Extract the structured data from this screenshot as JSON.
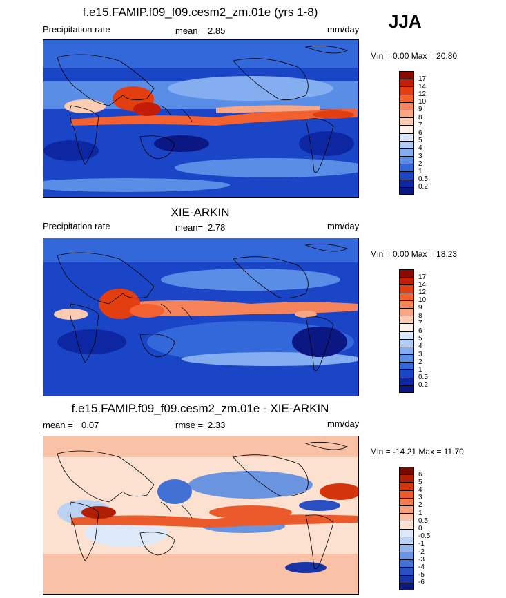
{
  "season": "JJA",
  "panels": [
    {
      "title": "f.e15.FAMIP.f09_f09.cesm2_zm.01e (yrs 1-8)",
      "left_label": "Precipitation rate",
      "stat_label": "mean=",
      "stat_value": "2.85",
      "stat2_label": "",
      "stat2_value": "",
      "units": "mm/day",
      "minmax": "Min =   0.00 Max =  20.80",
      "colorbar_ticks": [
        "17",
        "14",
        "12",
        "10",
        "9",
        "8",
        "7",
        "6",
        "5",
        "4",
        "3",
        "2",
        "1",
        "0.5",
        "0.2"
      ],
      "colors": [
        "#8b0a00",
        "#c51d05",
        "#e33e10",
        "#f2612f",
        "#f5845a",
        "#f8a683",
        "#fbccb2",
        "#fdf0e6",
        "#d7e6fb",
        "#b1cdf5",
        "#85aef0",
        "#5a8ee6",
        "#3368db",
        "#1b45c7",
        "#0d27a3",
        "#0b1783"
      ]
    },
    {
      "title": "XIE-ARKIN",
      "left_label": "Precipitation rate",
      "stat_label": "mean=",
      "stat_value": "2.78",
      "stat2_label": "",
      "stat2_value": "",
      "units": "mm/day",
      "minmax": "Min =   0.00 Max =  18.23",
      "colorbar_ticks": [
        "17",
        "14",
        "12",
        "10",
        "9",
        "8",
        "7",
        "6",
        "5",
        "4",
        "3",
        "2",
        "1",
        "0.5",
        "0.2"
      ],
      "colors": [
        "#8b0a00",
        "#c51d05",
        "#e33e10",
        "#f2612f",
        "#f5845a",
        "#f8a683",
        "#fbccb2",
        "#fdf0e6",
        "#d7e6fb",
        "#b1cdf5",
        "#85aef0",
        "#5a8ee6",
        "#3368db",
        "#1b45c7",
        "#0d27a3",
        "#0b1783"
      ]
    },
    {
      "title": "f.e15.FAMIP.f09_f09.cesm2_zm.01e - XIE-ARKIN",
      "left_label": "",
      "stat_label": "mean =",
      "stat_value": "0.07",
      "stat2_label": "rmse =",
      "stat2_value": "2.33",
      "units": "mm/day",
      "minmax": "Min = -14.21 Max =  11.70",
      "colorbar_ticks": [
        "6",
        "5",
        "4",
        "3",
        "2",
        "1",
        "0.5",
        "0",
        "-0.5",
        "-1",
        "-2",
        "-3",
        "-4",
        "-5",
        "-6"
      ],
      "colors": [
        "#7a0a00",
        "#b01e05",
        "#d3340c",
        "#ea5a2a",
        "#f27d52",
        "#f6a07c",
        "#f9c1a6",
        "#fce0d0",
        "#dde8f8",
        "#bcd2f3",
        "#94b5ec",
        "#6a93e0",
        "#4270d3",
        "#2a4fc2",
        "#1834a6",
        "#0a1a80"
      ]
    }
  ]
}
